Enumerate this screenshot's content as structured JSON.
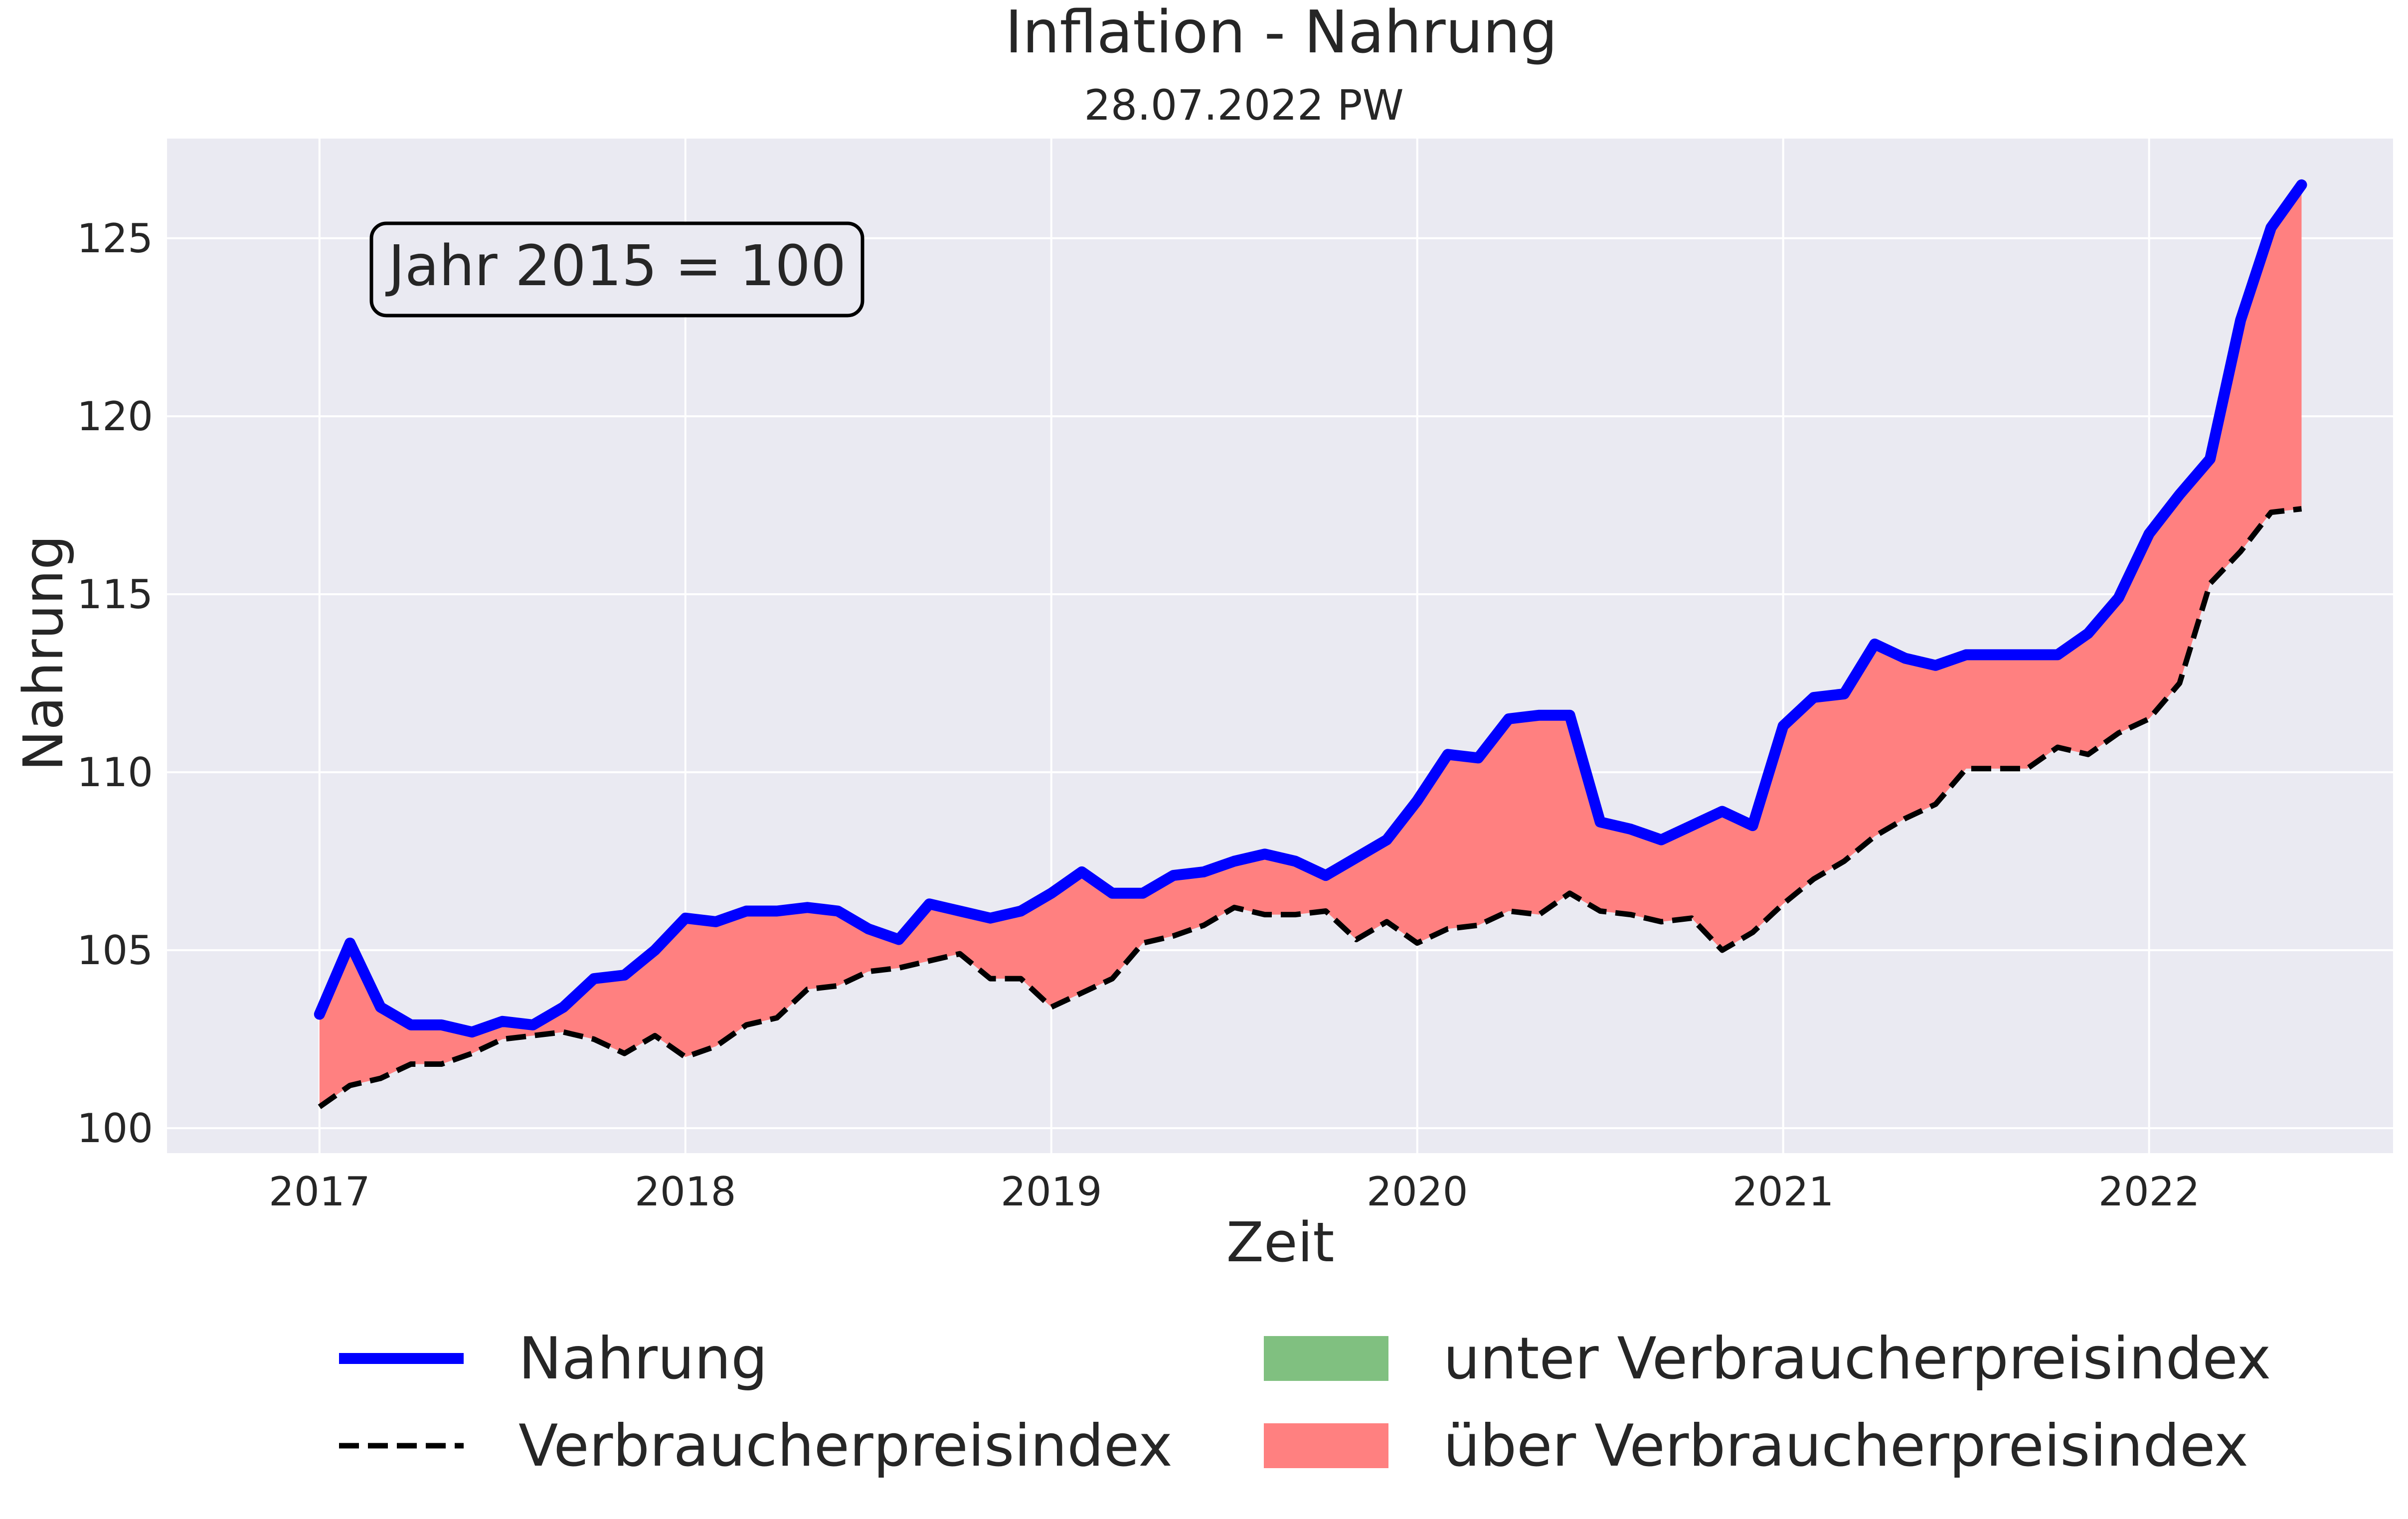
{
  "chart_data": {
    "type": "line",
    "title": "Inflation - Nahrung",
    "subtitle": "28.07.2022 PW",
    "xlabel": "Zeit",
    "ylabel": "Nahrung",
    "annotation": "Jahr 2015 = 100",
    "x_start": "2017-01",
    "x_ticks": [
      "2017",
      "2018",
      "2019",
      "2020",
      "2021",
      "2022"
    ],
    "y_ticks": [
      100,
      105,
      110,
      115,
      120,
      125
    ],
    "xlim": [
      "2016-08",
      "2022-09"
    ],
    "ylim": [
      99.3,
      127.8
    ],
    "grid": true,
    "legend_position": "below plot, two columns",
    "colors": {
      "plot_background": "#eaeaf2",
      "grid": "#ffffff",
      "nahrung_line": "#0000ff",
      "vpi_line": "#000000",
      "fill_above": "#ff8080",
      "fill_below": "#80c080"
    },
    "legend": [
      {
        "label": "Nahrung",
        "kind": "line-solid"
      },
      {
        "label": "Verbraucherpreisindex",
        "kind": "line-dashed"
      },
      {
        "label": "unter Verbraucherpreisindex",
        "kind": "patch-green"
      },
      {
        "label": "über Verbraucherpreisindex",
        "kind": "patch-red"
      }
    ],
    "series": [
      {
        "name": "Nahrung",
        "values": [
          103.2,
          105.2,
          103.4,
          102.9,
          102.9,
          102.7,
          103.0,
          102.9,
          103.4,
          104.2,
          104.3,
          105.0,
          105.9,
          105.8,
          106.1,
          106.1,
          106.2,
          106.1,
          105.6,
          105.3,
          106.3,
          106.1,
          105.9,
          106.1,
          106.6,
          107.2,
          106.6,
          106.6,
          107.1,
          107.2,
          107.5,
          107.7,
          107.5,
          107.1,
          107.6,
          108.1,
          109.2,
          110.5,
          110.4,
          111.5,
          111.6,
          111.6,
          108.6,
          108.4,
          108.1,
          108.5,
          108.9,
          108.5,
          111.3,
          112.1,
          112.2,
          113.6,
          113.2,
          113.0,
          113.3,
          113.3,
          113.3,
          113.3,
          113.9,
          114.9,
          116.7,
          117.8,
          118.8,
          122.7,
          125.3,
          126.5
        ]
      },
      {
        "name": "Verbraucherpreisindex",
        "values": [
          100.6,
          101.2,
          101.4,
          101.8,
          101.8,
          102.1,
          102.5,
          102.6,
          102.7,
          102.5,
          102.1,
          102.6,
          102.0,
          102.3,
          102.9,
          103.1,
          103.9,
          104.0,
          104.4,
          104.5,
          104.7,
          104.9,
          104.2,
          104.2,
          103.4,
          103.8,
          104.2,
          105.2,
          105.4,
          105.7,
          106.2,
          106.0,
          106.0,
          106.1,
          105.3,
          105.8,
          105.2,
          105.6,
          105.7,
          106.1,
          106.0,
          106.6,
          106.1,
          106.0,
          105.8,
          105.9,
          105.0,
          105.5,
          106.3,
          107.0,
          107.5,
          108.2,
          108.7,
          109.1,
          110.1,
          110.1,
          110.1,
          110.7,
          110.5,
          111.1,
          111.5,
          112.5,
          115.3,
          116.2,
          117.3,
          117.4
        ]
      }
    ]
  }
}
